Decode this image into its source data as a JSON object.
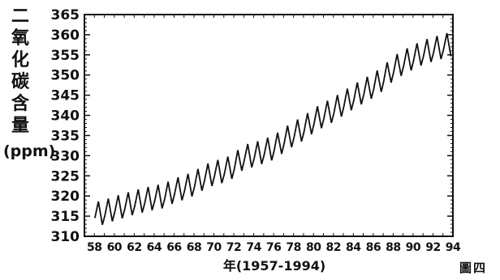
{
  "chart_data": {
    "type": "line",
    "title": "",
    "ylabel_chars": [
      "二",
      "氧",
      "化",
      "碳",
      "含",
      "量"
    ],
    "ylabel_unit": "(ppm)",
    "xlabel": "年(1957-1994)",
    "figure_label": "圖四",
    "ylim": [
      310,
      365
    ],
    "xlim": [
      1957,
      1994
    ],
    "yticks": [
      310,
      315,
      320,
      325,
      330,
      335,
      340,
      345,
      350,
      355,
      360,
      365
    ],
    "xtick_labels": [
      "58",
      "60",
      "62",
      "64",
      "66",
      "68",
      "70",
      "72",
      "74",
      "76",
      "78",
      "80",
      "82",
      "84",
      "86",
      "88",
      "90",
      "92",
      "94"
    ],
    "grid": false,
    "series": [
      {
        "years": [
          1958,
          1959,
          1960,
          1961,
          1962,
          1963,
          1964,
          1965,
          1966,
          1967,
          1968,
          1969,
          1970,
          1971,
          1972,
          1973,
          1974,
          1975,
          1976,
          1977,
          1978,
          1979,
          1980,
          1981,
          1982,
          1983,
          1984,
          1985,
          1986,
          1987,
          1988,
          1989,
          1990,
          1991,
          1992,
          1993
        ],
        "annual_mean": [
          315.4,
          316.0,
          316.9,
          317.6,
          318.4,
          319.0,
          319.6,
          320.0,
          321.3,
          322.1,
          323.1,
          324.6,
          325.7,
          326.3,
          327.5,
          329.7,
          330.2,
          331.1,
          332.0,
          333.8,
          335.4,
          336.8,
          338.7,
          340.1,
          341.4,
          343.0,
          344.6,
          346.0,
          347.4,
          349.2,
          351.6,
          353.1,
          354.4,
          355.6,
          356.4,
          357.1
        ],
        "seasonal_amplitude_ppm": 6.0
      }
    ]
  }
}
